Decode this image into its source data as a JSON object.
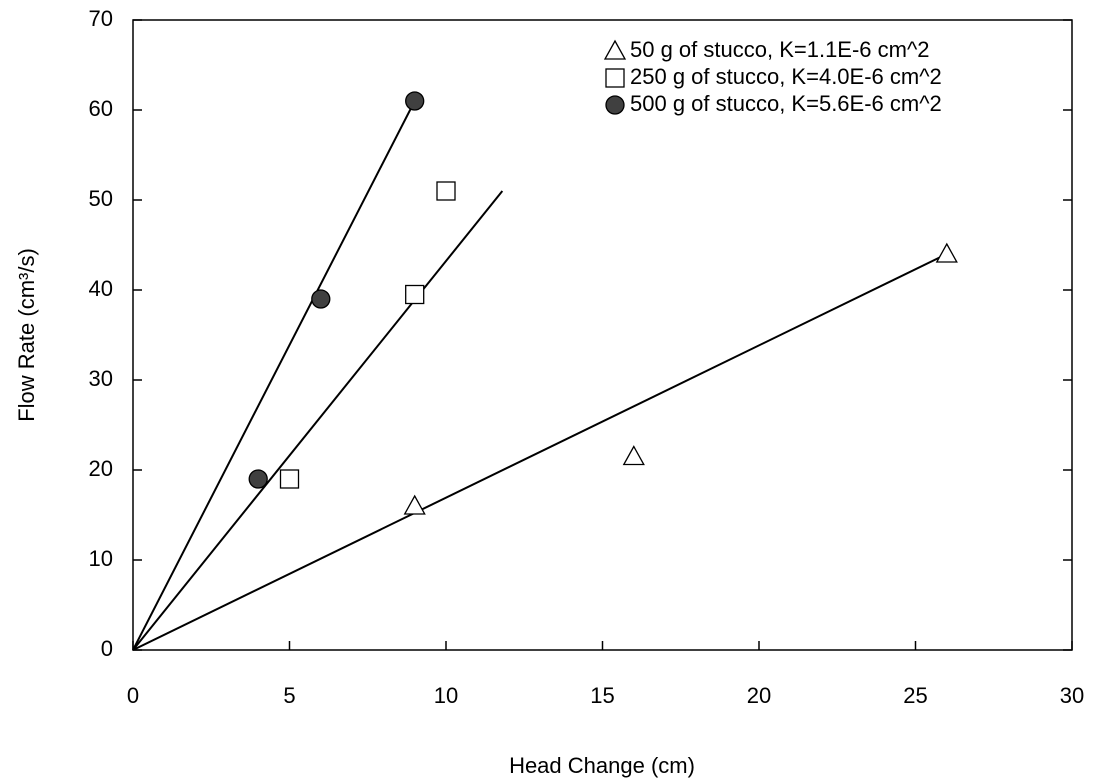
{
  "chart_data": {
    "type": "scatter",
    "x_label": "Head Change (cm)",
    "y_label": "Flow Rate (cm³/s)",
    "xlim": [
      0,
      30
    ],
    "xticks": [
      0,
      5,
      10,
      15,
      20,
      25,
      30
    ],
    "ylim": [
      0,
      70
    ],
    "yticks": [
      0,
      10,
      20,
      30,
      40,
      50,
      60,
      70
    ],
    "legend": "top-right",
    "series": [
      {
        "name": "50 g of stucco, K=1.1E-6 cm^2",
        "marker": "triangle",
        "color": "#ffffff",
        "x": [
          9,
          16,
          26
        ],
        "values": [
          16,
          21.5,
          44
        ],
        "trendline": {
          "x": [
            0,
            26
          ],
          "values": [
            0,
            44
          ]
        }
      },
      {
        "name": "250 g of stucco, K=4.0E-6 cm^2",
        "marker": "square",
        "color": "#ffffff",
        "x": [
          5,
          9,
          10
        ],
        "values": [
          19,
          39.5,
          51
        ],
        "trendline": {
          "x": [
            0,
            11.8
          ],
          "values": [
            0,
            51
          ]
        }
      },
      {
        "name": "500 g of stucco, K=5.6E-6 cm^2",
        "marker": "circle",
        "color": "#404040",
        "x": [
          4,
          6,
          9
        ],
        "values": [
          19,
          39,
          61
        ],
        "trendline": {
          "x": [
            0,
            9
          ],
          "values": [
            0,
            61
          ]
        }
      }
    ]
  }
}
